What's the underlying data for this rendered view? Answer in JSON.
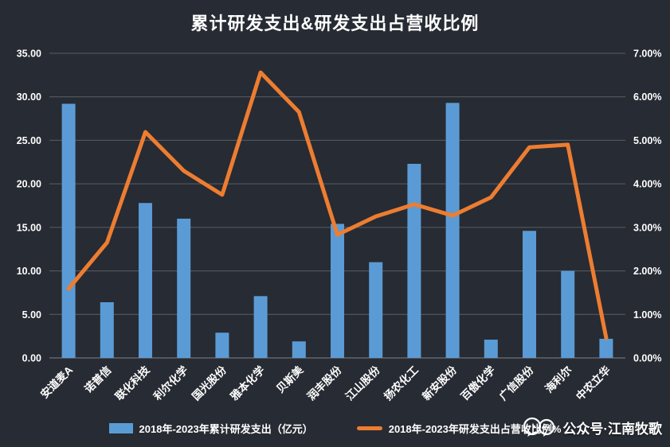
{
  "title": "累计研发支出&研发支出占营收比例",
  "legend": {
    "bar_label": "2018年-2023年累计研发支出（亿元）",
    "line_label": "2018年-2023年研发支出占营收比例%"
  },
  "watermark": {
    "icon": "chat-bubbles-icon",
    "text": "公众号·江南牧歌"
  },
  "colors": {
    "background": "#272b33",
    "grid": "#5a5f66",
    "axis_base": "#7d828a",
    "bar": "#5b9bd5",
    "line": "#ed7d31",
    "text": "#ffffff"
  },
  "chart_data": {
    "type": "bar",
    "subtype": "combo-bar-line-dual-axis",
    "title": "累计研发支出&研发支出占营收比例",
    "categories": [
      "安道麦A",
      "诺普信",
      "联化科技",
      "利尔化学",
      "国光股份",
      "雅本化学",
      "贝斯美",
      "润丰股份",
      "江山股份",
      "扬农化工",
      "新安股份",
      "百傲化学",
      "广信股份",
      "海利尔",
      "中农立华"
    ],
    "series": [
      {
        "name": "2018年-2023年累计研发支出（亿元）",
        "type": "bar",
        "axis": "left",
        "values": [
          29.2,
          6.4,
          17.8,
          16.0,
          2.9,
          7.1,
          1.9,
          15.4,
          11.0,
          22.3,
          29.3,
          2.1,
          14.6,
          10.0,
          2.2
        ]
      },
      {
        "name": "2018年-2023年研发支出占营收比例%",
        "type": "line",
        "axis": "right",
        "values": [
          1.59,
          2.65,
          5.19,
          4.3,
          3.75,
          6.56,
          5.65,
          2.83,
          3.25,
          3.53,
          3.27,
          3.69,
          4.84,
          4.9,
          0.46
        ]
      }
    ],
    "left_axis": {
      "min": 0,
      "max": 35,
      "step": 5,
      "format": "0.00"
    },
    "right_axis": {
      "min": 0,
      "max": 7,
      "step": 1,
      "format": "0.00%"
    },
    "grid": true,
    "legend_position": "bottom"
  }
}
